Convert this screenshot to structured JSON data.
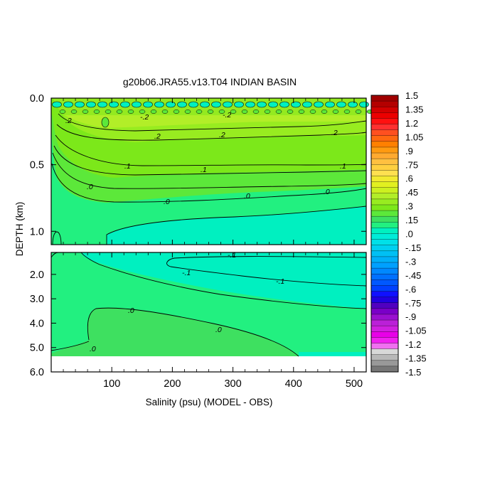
{
  "chart_data": {
    "type": "contour",
    "title": "g20b06.JRA55.v13.T04 INDIAN BASIN",
    "xlabel": "Salinity (psu) (MODEL - OBS)",
    "ylabel": "DEPTH (km)",
    "xlim": [
      0,
      520
    ],
    "x_ticks": [
      "100",
      "200",
      "300",
      "400",
      "500"
    ],
    "upper_panel": {
      "ylim": [
        0,
        1.1
      ],
      "y_ticks": [
        "0.0",
        "0.5",
        "1.0"
      ]
    },
    "lower_panel": {
      "ylim": [
        1.1,
        6.0
      ],
      "y_ticks": [
        "2.0",
        "3.0",
        "4.0",
        "5.0",
        "6.0"
      ]
    },
    "colorbar": {
      "labels": [
        "1.5",
        "1.35",
        "1.2",
        "1.05",
        ".9",
        ".75",
        ".6",
        ".45",
        ".3",
        ".15",
        ".0",
        "-.15",
        "-.3",
        "-.45",
        "-.6",
        "-.75",
        "-.9",
        "-1.05",
        "-1.2",
        "-1.35",
        "-1.5"
      ],
      "colors": [
        "#a00000",
        "#b40000",
        "#d20000",
        "#ec0000",
        "#ff1010",
        "#ff3030",
        "#ff5020",
        "#ff6810",
        "#ff8000",
        "#ff9a10",
        "#ffaa30",
        "#ffc040",
        "#ffd040",
        "#ffe050",
        "#f2ea30",
        "#e2f020",
        "#ccf020",
        "#b2ee28",
        "#98ec20",
        "#7ce81a",
        "#5ce83a",
        "#3ee060",
        "#22f080",
        "#00f0c0",
        "#00ecd8",
        "#00e0e8",
        "#00d0f0",
        "#00c0f4",
        "#00b0f8",
        "#00a0ff",
        "#0088ff",
        "#0070ff",
        "#0058ff",
        "#0040ff",
        "#1010ff",
        "#2000e0",
        "#5000c0",
        "#7a00c8",
        "#9a10d0",
        "#bb20d8",
        "#d020e0",
        "#e800e8",
        "#f020f0",
        "#f070f0",
        "#d8d8d8",
        "#b8b8b8",
        "#999999",
        "#777777"
      ]
    },
    "contour_labels": [
      "-.2",
      ".2",
      ".1",
      ".0",
      "-.1"
    ]
  }
}
